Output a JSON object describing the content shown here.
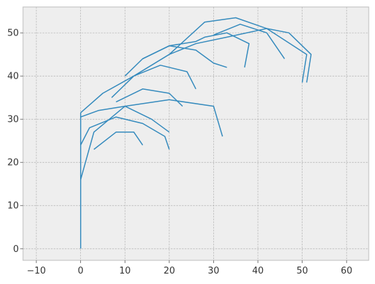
{
  "chart_data": {
    "type": "line",
    "title": "",
    "xlabel": "",
    "ylabel": "",
    "xlim": [
      -13,
      65
    ],
    "ylim": [
      -2.7,
      56
    ],
    "x_ticks": [
      -10,
      0,
      10,
      20,
      30,
      40,
      50,
      60
    ],
    "y_ticks": [
      0,
      10,
      20,
      30,
      40,
      50
    ],
    "x_tick_labels": [
      "−10",
      "0",
      "10",
      "20",
      "30",
      "40",
      "50",
      "60"
    ],
    "y_tick_labels": [
      "0",
      "10",
      "20",
      "30",
      "40",
      "50"
    ],
    "grid": true,
    "legend": "none",
    "description": "fractal plant (branching curves)",
    "colors": {
      "line": "#348ABD",
      "background": "#EEEEEE",
      "grid": "#B2B2B2",
      "axes": "#BCBCBC"
    },
    "series": [
      {
        "x": [
          0,
          0
        ],
        "y": [
          0,
          31.5
        ]
      },
      {
        "x": [
          0,
          3,
          10,
          20,
          30,
          32
        ],
        "y": [
          16,
          27,
          33,
          34.5,
          33,
          26
        ]
      },
      {
        "x": [
          0,
          2,
          8,
          14,
          19,
          20
        ],
        "y": [
          24,
          28,
          30.5,
          29,
          26,
          23
        ]
      },
      {
        "x": [
          3,
          8,
          12,
          14
        ],
        "y": [
          23,
          27,
          27,
          24
        ]
      },
      {
        "x": [
          0,
          4,
          10,
          16,
          20
        ],
        "y": [
          30.5,
          32,
          33,
          30,
          27
        ]
      },
      {
        "x": [
          0,
          5,
          12,
          20,
          26,
          33,
          42,
          51,
          50
        ],
        "y": [
          31.5,
          36,
          40,
          45,
          47.5,
          49,
          51,
          45,
          38.5
        ]
      },
      {
        "x": [
          7,
          12,
          18,
          24,
          26
        ],
        "y": [
          35,
          40,
          42.5,
          41,
          37
        ]
      },
      {
        "x": [
          8,
          14,
          20,
          23
        ],
        "y": [
          34,
          37,
          36,
          33
        ]
      },
      {
        "x": [
          10,
          14,
          20,
          26,
          28,
          33,
          38,
          37
        ],
        "y": [
          40,
          44,
          47,
          48,
          49,
          50,
          47.5,
          42
        ]
      },
      {
        "x": [
          20,
          28,
          35,
          42,
          47,
          52,
          51
        ],
        "y": [
          45,
          52.5,
          53.5,
          51,
          50,
          45,
          38.5
        ]
      },
      {
        "x": [
          30,
          36,
          42,
          46
        ],
        "y": [
          49.5,
          52,
          50,
          44
        ]
      },
      {
        "x": [
          14,
          20,
          26,
          30,
          33
        ],
        "y": [
          44,
          47,
          46,
          43,
          42
        ]
      }
    ]
  }
}
